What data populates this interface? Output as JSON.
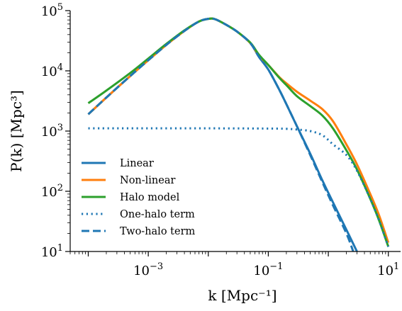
{
  "chart_data": {
    "type": "line",
    "xlabel": "k [Mpc⁻¹]",
    "ylabel": "P(k) [Mpc³]",
    "xscale": "log",
    "yscale": "log",
    "xlim": [
      5e-05,
      16
    ],
    "ylim": [
      10,
      100000
    ],
    "grid": false,
    "legend_position": "bottom-left",
    "x_ticks": [
      {
        "value": 0.001,
        "base": "10",
        "exp": "−3"
      },
      {
        "value": 0.1,
        "base": "10",
        "exp": "−1"
      },
      {
        "value": 10,
        "base": "10",
        "exp": "1"
      }
    ],
    "y_ticks": [
      {
        "value": 10,
        "base": "10",
        "exp": "1"
      },
      {
        "value": 100,
        "base": "10",
        "exp": "2"
      },
      {
        "value": 1000,
        "base": "10",
        "exp": "3"
      },
      {
        "value": 10000,
        "base": "10",
        "exp": "4"
      },
      {
        "value": 100000,
        "base": "10",
        "exp": "5"
      }
    ],
    "series": [
      {
        "name": "Linear",
        "color": "#1f77b4",
        "linestyle": "solid",
        "points": [
          [
            0.0001,
            1900
          ],
          [
            0.0002,
            3600
          ],
          [
            0.0005,
            8200
          ],
          [
            0.001,
            15000
          ],
          [
            0.002,
            27000
          ],
          [
            0.004,
            46000
          ],
          [
            0.007,
            66000
          ],
          [
            0.01,
            73000
          ],
          [
            0.013,
            72000
          ],
          [
            0.02,
            58000
          ],
          [
            0.03,
            45000
          ],
          [
            0.05,
            29000
          ],
          [
            0.07,
            17000
          ],
          [
            0.1,
            10500
          ],
          [
            0.15,
            5000
          ],
          [
            0.2,
            2800
          ],
          [
            0.3,
            1200
          ],
          [
            0.5,
            420
          ],
          [
            0.8,
            150
          ],
          [
            1.2,
            65
          ],
          [
            2,
            23
          ],
          [
            3,
            10
          ]
        ]
      },
      {
        "name": "Non-linear",
        "color": "#ff7f0e",
        "linestyle": "solid",
        "points": [
          [
            0.0001,
            1900
          ],
          [
            0.0002,
            3600
          ],
          [
            0.0005,
            8200
          ],
          [
            0.001,
            15000
          ],
          [
            0.002,
            27000
          ],
          [
            0.004,
            46000
          ],
          [
            0.007,
            66000
          ],
          [
            0.01,
            73000
          ],
          [
            0.013,
            72000
          ],
          [
            0.02,
            58000
          ],
          [
            0.03,
            45000
          ],
          [
            0.05,
            29000
          ],
          [
            0.07,
            18000
          ],
          [
            0.1,
            12500
          ],
          [
            0.15,
            8000
          ],
          [
            0.2,
            6200
          ],
          [
            0.3,
            4500
          ],
          [
            0.5,
            3200
          ],
          [
            0.8,
            2300
          ],
          [
            1.2,
            1450
          ],
          [
            2,
            600
          ],
          [
            3,
            280
          ],
          [
            5,
            90
          ],
          [
            7,
            40
          ],
          [
            10,
            14
          ]
        ]
      },
      {
        "name": "Halo model",
        "color": "#2ca02c",
        "linestyle": "solid",
        "points": [
          [
            0.0001,
            2900
          ],
          [
            0.0002,
            4700
          ],
          [
            0.0005,
            9200
          ],
          [
            0.001,
            16000
          ],
          [
            0.002,
            28000
          ],
          [
            0.004,
            47000
          ],
          [
            0.007,
            66000
          ],
          [
            0.01,
            73000
          ],
          [
            0.013,
            72000
          ],
          [
            0.02,
            58000
          ],
          [
            0.03,
            45000
          ],
          [
            0.05,
            29500
          ],
          [
            0.07,
            18500
          ],
          [
            0.1,
            12500
          ],
          [
            0.15,
            7800
          ],
          [
            0.2,
            5800
          ],
          [
            0.3,
            3800
          ],
          [
            0.5,
            2600
          ],
          [
            0.8,
            1800
          ],
          [
            1.2,
            1100
          ],
          [
            2,
            480
          ],
          [
            3,
            230
          ],
          [
            5,
            75
          ],
          [
            7,
            33
          ],
          [
            10,
            12
          ]
        ]
      },
      {
        "name": "One-halo term",
        "color": "#1f77b4",
        "linestyle": "dotted",
        "points": [
          [
            0.0001,
            1110
          ],
          [
            0.001,
            1110
          ],
          [
            0.01,
            1110
          ],
          [
            0.1,
            1100
          ],
          [
            0.2,
            1090
          ],
          [
            0.3,
            1060
          ],
          [
            0.5,
            1000
          ],
          [
            0.8,
            850
          ],
          [
            1.2,
            600
          ],
          [
            2,
            400
          ],
          [
            3,
            220
          ],
          [
            5,
            75
          ],
          [
            7,
            33
          ],
          [
            10,
            12
          ]
        ]
      },
      {
        "name": "Two-halo term",
        "color": "#1f77b4",
        "linestyle": "dashed",
        "points": [
          [
            0.0001,
            1900
          ],
          [
            0.0002,
            3600
          ],
          [
            0.0005,
            8200
          ],
          [
            0.001,
            15000
          ],
          [
            0.002,
            27000
          ],
          [
            0.004,
            46000
          ],
          [
            0.007,
            66000
          ],
          [
            0.01,
            73000
          ],
          [
            0.013,
            72000
          ],
          [
            0.02,
            58000
          ],
          [
            0.03,
            45000
          ],
          [
            0.05,
            29000
          ],
          [
            0.07,
            17000
          ],
          [
            0.1,
            10500
          ],
          [
            0.15,
            5000
          ],
          [
            0.2,
            2800
          ],
          [
            0.3,
            1200
          ],
          [
            0.5,
            400
          ],
          [
            0.8,
            140
          ],
          [
            1.2,
            58
          ],
          [
            2,
            20
          ],
          [
            2.6,
            10
          ]
        ]
      }
    ]
  }
}
